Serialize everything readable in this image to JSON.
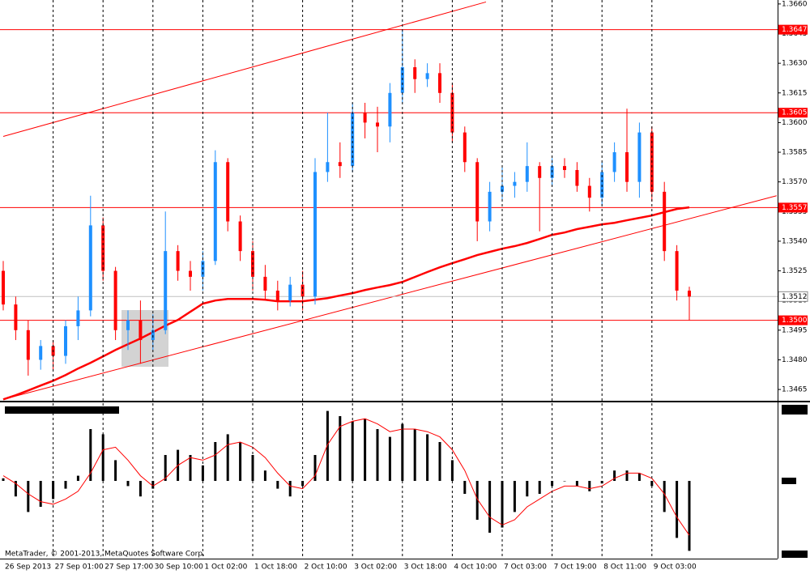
{
  "chart_data": [
    {
      "type": "candlestick",
      "categories": [
        "26 Sep 2013",
        null,
        null,
        null,
        "27 Sep 01:00",
        null,
        null,
        null,
        "27 Sep 17:00",
        null,
        null,
        null,
        "30 Sep 10:00",
        null,
        null,
        null,
        "1 Oct 02:00",
        null,
        null,
        null,
        "1 Oct 18:00",
        null,
        null,
        null,
        "2 Oct 10:00",
        null,
        null,
        null,
        "3 Oct 02:00",
        null,
        null,
        null,
        "3 Oct 18:00",
        null,
        null,
        null,
        "4 Oct 10:00",
        null,
        null,
        null,
        "7 Oct 03:00",
        null,
        null,
        null,
        "7 Oct 19:00",
        null,
        null,
        null,
        "8 Oct 11:00",
        null,
        null,
        null,
        "9 Oct 03:00",
        null,
        null,
        null
      ],
      "open": [
        1.3525,
        1.3508,
        1.3495,
        1.348,
        1.3487,
        1.3482,
        1.3497,
        1.3505,
        1.3548,
        1.3525,
        1.3495,
        1.35,
        1.349,
        1.3495,
        1.3535,
        1.3525,
        1.3522,
        1.353,
        1.358,
        1.355,
        1.3535,
        1.3522,
        1.3515,
        1.351,
        1.3518,
        1.3512,
        1.3575,
        1.358,
        1.3578,
        1.3605,
        1.36,
        1.3598,
        1.3615,
        1.3628,
        1.3622,
        1.3625,
        1.3615,
        1.3595,
        1.358,
        1.355,
        1.3565,
        1.3568,
        1.357,
        1.3578,
        1.3572,
        1.3578,
        1.3576,
        1.3568,
        1.3562,
        1.3575,
        1.3585,
        1.357,
        1.3595,
        1.3565,
        1.3535,
        1.3515
      ],
      "high": [
        1.353,
        1.3512,
        1.35,
        1.349,
        1.349,
        1.35,
        1.3512,
        1.3563,
        1.3552,
        1.3527,
        1.3505,
        1.351,
        1.3503,
        1.3555,
        1.3538,
        1.353,
        1.3535,
        1.3586,
        1.3582,
        1.3553,
        1.354,
        1.3528,
        1.352,
        1.3522,
        1.3525,
        1.3582,
        1.3605,
        1.359,
        1.361,
        1.361,
        1.3608,
        1.362,
        1.3647,
        1.3632,
        1.363,
        1.363,
        1.362,
        1.3598,
        1.3582,
        1.357,
        1.3578,
        1.3575,
        1.359,
        1.358,
        1.3582,
        1.3582,
        1.358,
        1.3572,
        1.358,
        1.359,
        1.3607,
        1.36,
        1.3598,
        1.357,
        1.3538,
        1.3517
      ],
      "low": [
        1.3505,
        1.349,
        1.3472,
        1.3475,
        1.3475,
        1.3478,
        1.349,
        1.3502,
        1.352,
        1.349,
        1.3485,
        1.3478,
        1.3485,
        1.3493,
        1.352,
        1.3515,
        1.3515,
        1.3528,
        1.3545,
        1.353,
        1.3515,
        1.351,
        1.3505,
        1.3507,
        1.3505,
        1.3508,
        1.357,
        1.3572,
        1.3575,
        1.3592,
        1.3585,
        1.359,
        1.361,
        1.3615,
        1.3618,
        1.361,
        1.359,
        1.3575,
        1.354,
        1.3545,
        1.356,
        1.3562,
        1.3565,
        1.3545,
        1.3568,
        1.3572,
        1.3565,
        1.3555,
        1.3558,
        1.357,
        1.3565,
        1.3562,
        1.356,
        1.353,
        1.351,
        1.35
      ],
      "close": [
        1.3508,
        1.3495,
        1.348,
        1.3487,
        1.3482,
        1.3497,
        1.3505,
        1.3548,
        1.3525,
        1.3495,
        1.35,
        1.349,
        1.3495,
        1.3535,
        1.3525,
        1.3522,
        1.353,
        1.358,
        1.355,
        1.3535,
        1.3522,
        1.3515,
        1.351,
        1.3518,
        1.3512,
        1.3575,
        1.358,
        1.3578,
        1.3605,
        1.36,
        1.3598,
        1.3615,
        1.3628,
        1.3622,
        1.3625,
        1.3615,
        1.3595,
        1.358,
        1.355,
        1.3565,
        1.3568,
        1.357,
        1.3578,
        1.3572,
        1.3578,
        1.3576,
        1.3568,
        1.3562,
        1.3575,
        1.3585,
        1.357,
        1.3595,
        1.3565,
        1.3535,
        1.3515,
        1.3512
      ],
      "up_color": "#1e90ff",
      "down_color": "#ff0000",
      "moving_average": {
        "color": "#ff0000",
        "values": [
          1.346,
          1.34621,
          1.34645,
          1.3467,
          1.34694,
          1.34723,
          1.34756,
          1.34785,
          1.34817,
          1.3485,
          1.34879,
          1.34908,
          1.3494,
          1.34973,
          1.35002,
          1.35043,
          1.35084,
          1.351,
          1.35108,
          1.35108,
          1.35108,
          1.35104,
          1.35096,
          1.35096,
          1.35096,
          1.35104,
          1.35112,
          1.35125,
          1.35137,
          1.35153,
          1.35166,
          1.35178,
          1.35194,
          1.35219,
          1.35244,
          1.35268,
          1.35289,
          1.35309,
          1.3533,
          1.35346,
          1.35362,
          1.35375,
          1.35391,
          1.35411,
          1.35432,
          1.35444,
          1.35461,
          1.35473,
          1.35485,
          1.35493,
          1.35506,
          1.35518,
          1.3553,
          1.35547,
          1.35563,
          1.35571
        ]
      },
      "trendlines": [
        {
          "color": "#ff0000",
          "x": [
            0,
            38.7
          ],
          "y": [
            1.3593,
            1.3661
          ]
        },
        {
          "color": "#ff0000",
          "x": [
            0,
            62
          ],
          "y": [
            1.346,
            1.3563
          ]
        }
      ],
      "levels": [
        {
          "value": 1.3647,
          "label": "1.3647"
        },
        {
          "value": 1.3605,
          "label": "1.3605"
        },
        {
          "value": 1.3557,
          "label": "1.3557"
        },
        {
          "value": 1.35,
          "label": "1.3500"
        }
      ],
      "level_color": "#ff0000",
      "last_price": {
        "value": 1.3512,
        "label": "1.3512"
      },
      "ylim": [
        1.34593,
        1.3662
      ],
      "yticks": [
        {
          "value": 1.366,
          "label": "1.3660"
        },
        {
          "value": 1.3645,
          "label": "1.3645"
        },
        {
          "value": 1.363,
          "label": "1.3630"
        },
        {
          "value": 1.3615,
          "label": "1.3615"
        },
        {
          "value": 1.36,
          "label": "1.3600"
        },
        {
          "value": 1.3585,
          "label": "1.3585"
        },
        {
          "value": 1.357,
          "label": "1.3570"
        },
        {
          "value": 1.3555,
          "label": "1.3555"
        },
        {
          "value": 1.354,
          "label": "1.3540"
        },
        {
          "value": 1.3525,
          "label": "1.3525"
        },
        {
          "value": 1.351,
          "label": "1.3510"
        },
        {
          "value": 1.3495,
          "label": "1.3495"
        },
        {
          "value": 1.348,
          "label": "1.3480"
        },
        {
          "value": 1.3465,
          "label": "1.3465"
        }
      ]
    },
    {
      "type": "bar",
      "color": "#000000",
      "signal_color": "#ff0000",
      "values": [
        0.0001,
        -0.0006,
        -0.0012,
        -0.001,
        -0.0007,
        -0.0003,
        0.0002,
        0.002,
        0.0018,
        0.0008,
        -0.0002,
        -0.0006,
        -0.0003,
        0.001,
        0.0012,
        0.001,
        0.0006,
        0.0015,
        0.0018,
        0.0015,
        0.001,
        0.0004,
        -0.0003,
        -0.0006,
        -0.0002,
        0.001,
        0.0027,
        0.0025,
        0.0023,
        0.0024,
        0.002,
        0.0017,
        0.0022,
        0.002,
        0.0018,
        0.0015,
        0.0008,
        -0.0005,
        -0.0015,
        -0.002,
        -0.0018,
        -0.0012,
        -0.0006,
        -0.0005,
        -0.0002,
        0.0,
        -0.0002,
        -0.0004,
        -0.0001,
        0.0004,
        0.0004,
        0.0003,
        -0.0002,
        -0.0012,
        -0.0022,
        -0.0027
      ],
      "signal": [
        0.0002,
        -0.0001,
        -0.0005,
        -0.0008,
        -0.0009,
        -0.0007,
        -0.0004,
        0.0003,
        0.0012,
        0.0013,
        0.0008,
        0.0002,
        -0.0002,
        0.0001,
        0.0006,
        0.0009,
        0.0008,
        0.001,
        0.0014,
        0.0015,
        0.0013,
        0.0009,
        0.0003,
        -0.0002,
        -0.0003,
        0.0002,
        0.0014,
        0.0021,
        0.0023,
        0.0024,
        0.0022,
        0.0019,
        0.002,
        0.002,
        0.0019,
        0.0017,
        0.0012,
        0.0004,
        -0.0007,
        -0.0014,
        -0.0017,
        -0.0015,
        -0.001,
        -0.0007,
        -0.0004,
        -0.0002,
        -0.0002,
        -0.0003,
        -0.0002,
        0.0001,
        0.0003,
        0.0003,
        0.0001,
        -0.0005,
        -0.0014,
        -0.0021
      ],
      "ylim": [
        -0.003,
        0.003
      ]
    }
  ],
  "footer": "MetaTrader, © 2001-2013, MetaQuotes Software Corp."
}
